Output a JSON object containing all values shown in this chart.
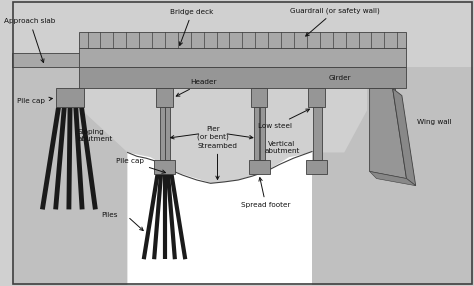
{
  "bg_color": "#d0d0d0",
  "ground_color": "#c0c0c0",
  "white_area": "#ffffff",
  "deck_color": "#a8a8a8",
  "girder_color": "#969696",
  "pile_color": "#1a1a1a",
  "border_color": "#404040",
  "text_color": "#111111",
  "wing_dark": "#888888",
  "labels": {
    "approach_slab": "Approach slab",
    "bridge_deck": "Bridge deck",
    "guardrail": "Guardrail (or safety wall)",
    "girder": "Girder",
    "pile_cap_left": "Pile cap",
    "sloping_abutment": "Sloping\nabutment",
    "header": "Header",
    "pier": "Pier\n(or bent)",
    "streambed": "Streambed",
    "low_steel": "Low steel",
    "vertical_abutment": "Vertical\nabutment",
    "wing_wall": "Wing wall",
    "pile_cap_center": "Pile cap",
    "piles": "Piles",
    "spread_footer": "Spread footer"
  }
}
